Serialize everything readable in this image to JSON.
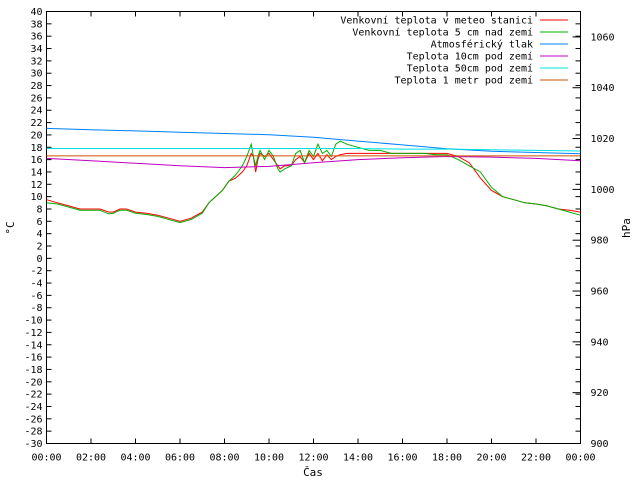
{
  "chart_data": {
    "type": "line",
    "title": "",
    "xlabel": "Čas",
    "ylabel": "°C",
    "y2label": "hPa",
    "xlim": [
      0,
      24
    ],
    "ylim": [
      -30,
      40
    ],
    "y2lim": [
      900,
      1070
    ],
    "grid": false,
    "legend_position": "top-right",
    "x_ticks": [
      "00:00",
      "02:00",
      "04:00",
      "06:00",
      "08:00",
      "10:00",
      "12:00",
      "14:00",
      "16:00",
      "18:00",
      "20:00",
      "22:00",
      "00:00"
    ],
    "y_ticks": [
      -30,
      -28,
      -26,
      -24,
      -22,
      -20,
      -18,
      -16,
      -14,
      -12,
      -10,
      -8,
      -6,
      -4,
      -2,
      0,
      2,
      4,
      6,
      8,
      10,
      12,
      14,
      16,
      18,
      20,
      22,
      24,
      26,
      28,
      30,
      32,
      34,
      36,
      38,
      40
    ],
    "y2_ticks": [
      900,
      920,
      940,
      960,
      980,
      1000,
      1020,
      1040,
      1060
    ],
    "series": [
      {
        "name": "Venkovní teplota v meteo stanici",
        "axis": "y",
        "color": "#ff0000",
        "x": [
          0,
          0.5,
          1,
          1.5,
          2,
          2.4,
          2.8,
          3,
          3.3,
          3.6,
          4,
          4.5,
          5,
          5.5,
          6,
          6.5,
          7,
          7.3,
          7.6,
          7.9,
          8.2,
          8.5,
          8.8,
          9,
          9.2,
          9.3,
          9.4,
          9.5,
          9.6,
          9.8,
          10,
          10.2,
          10.4,
          10.5,
          10.7,
          11,
          11.2,
          11.4,
          11.6,
          11.8,
          12,
          12.2,
          12.4,
          12.6,
          12.8,
          13,
          13.2,
          13.5,
          14,
          14.5,
          15,
          15.5,
          16,
          16.5,
          17,
          17.5,
          18,
          18.5,
          19,
          19.5,
          20,
          20.5,
          21,
          21.5,
          22,
          22.5,
          23,
          23.5,
          24
        ],
        "y": [
          9.5,
          9,
          8.5,
          8,
          8,
          8,
          7.5,
          7.5,
          8,
          8,
          7.5,
          7.3,
          7,
          6.5,
          6,
          6.5,
          7.5,
          9,
          10,
          11,
          12.5,
          13,
          14,
          15,
          17,
          16.5,
          14,
          16,
          17,
          16.5,
          17,
          16,
          15,
          14.5,
          15,
          15,
          16,
          16.5,
          15.5,
          17,
          16,
          17,
          15.8,
          16.8,
          16,
          16.5,
          16.8,
          17,
          17,
          17,
          17,
          17,
          17,
          17,
          17,
          17,
          17,
          16.5,
          15.5,
          13,
          11,
          10,
          9.5,
          9,
          8.8,
          8.5,
          8,
          7.8,
          7.5
        ]
      },
      {
        "name": "Venkovní teplota 5 cm nad zemí",
        "axis": "y",
        "color": "#00b000",
        "x": [
          0,
          0.5,
          1,
          1.5,
          2,
          2.4,
          2.8,
          3,
          3.3,
          3.6,
          4,
          4.5,
          5,
          5.5,
          6,
          6.5,
          7,
          7.3,
          7.6,
          7.9,
          8.2,
          8.5,
          8.8,
          9,
          9.2,
          9.3,
          9.4,
          9.5,
          9.6,
          9.8,
          10,
          10.2,
          10.4,
          10.5,
          10.7,
          11,
          11.2,
          11.4,
          11.6,
          11.8,
          12,
          12.2,
          12.4,
          12.6,
          12.8,
          13,
          13.2,
          13.5,
          14,
          14.5,
          15,
          15.5,
          16,
          16.5,
          17,
          17.5,
          18,
          18.5,
          19,
          19.5,
          20,
          20.5,
          21,
          21.5,
          22,
          22.5,
          23,
          23.5,
          24
        ],
        "y": [
          9,
          8.8,
          8.3,
          7.8,
          7.8,
          7.8,
          7.2,
          7.3,
          7.8,
          7.8,
          7.3,
          7.1,
          6.8,
          6.3,
          5.8,
          6.3,
          7.3,
          9,
          10,
          11,
          12.5,
          13.5,
          15,
          16.5,
          18.5,
          16.5,
          15,
          16.5,
          17.5,
          16,
          17.5,
          16.5,
          14.5,
          14,
          14.5,
          15,
          17,
          17.5,
          15.5,
          17.5,
          16.5,
          18.5,
          17,
          17.5,
          16.5,
          18.5,
          19,
          18.5,
          18,
          17.5,
          17.5,
          17,
          17,
          17,
          17,
          16.8,
          16.8,
          16,
          15,
          14,
          11.5,
          10,
          9.5,
          9,
          8.8,
          8.5,
          8,
          7.5,
          7
        ]
      },
      {
        "name": "Atmosférický tlak",
        "axis": "y2",
        "color": "#0080ff",
        "x": [
          0,
          2,
          4,
          6,
          8,
          10,
          12,
          14,
          16,
          18,
          20,
          22,
          24
        ],
        "y": [
          1024,
          1023.5,
          1023,
          1022.5,
          1022,
          1021.5,
          1020.5,
          1019,
          1017.5,
          1016,
          1015,
          1014.5,
          1014
        ]
      },
      {
        "name": "Teplota 10cm pod zemí",
        "axis": "y",
        "color": "#c000c0",
        "x": [
          0,
          2,
          4,
          6,
          8,
          10,
          12,
          14,
          16,
          18,
          20,
          22,
          24
        ],
        "y": [
          16.2,
          15.8,
          15.4,
          15,
          14.7,
          14.9,
          15.5,
          16,
          16.3,
          16.5,
          16.4,
          16.2,
          15.8
        ]
      },
      {
        "name": "Teplota 50cm pod zemí",
        "axis": "y",
        "color": "#00e0e0",
        "x": [
          0,
          2,
          4,
          6,
          8,
          10,
          12,
          14,
          16,
          18,
          20,
          22,
          24
        ],
        "y": [
          17.8,
          17.8,
          17.8,
          17.8,
          17.8,
          17.8,
          17.8,
          17.8,
          17.7,
          17.7,
          17.6,
          17.5,
          17.4
        ]
      },
      {
        "name": "Teplota 1 metr pod zemí",
        "axis": "y",
        "color": "#d05000",
        "x": [
          0,
          2,
          4,
          6,
          8,
          10,
          12,
          14,
          16,
          18,
          20,
          22,
          24
        ],
        "y": [
          16.6,
          16.6,
          16.6,
          16.6,
          16.6,
          16.6,
          16.6,
          16.6,
          16.6,
          16.6,
          16.6,
          16.6,
          16.6
        ]
      }
    ]
  }
}
